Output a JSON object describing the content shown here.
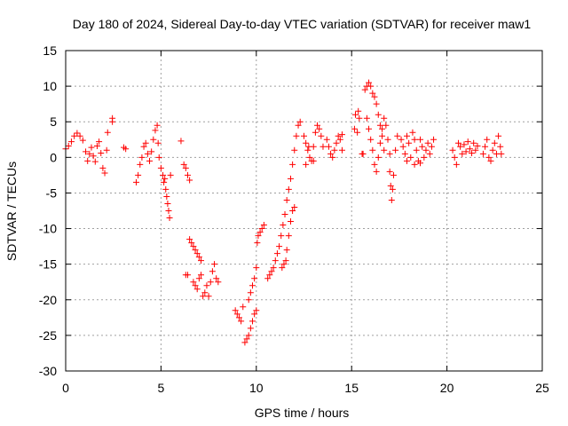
{
  "chart_data": {
    "type": "scatter",
    "title": "Day 180 of 2024, Sidereal Day-to-day VTEC variation (SDTVAR) for receiver maw1",
    "xlabel": "GPS time / hours",
    "ylabel": "SDTVAR / TECUs",
    "xlim": [
      0,
      25
    ],
    "ylim": [
      -30,
      15
    ],
    "xticks": [
      0,
      5,
      10,
      15,
      20,
      25
    ],
    "yticks": [
      -30,
      -25,
      -20,
      -15,
      -10,
      -5,
      0,
      5,
      10,
      15
    ],
    "grid": true,
    "legend": "none",
    "marker": "plus",
    "series": [
      {
        "name": "SDTVAR",
        "color": "#ff0000",
        "points": [
          [
            0.0,
            1.2
          ],
          [
            0.15,
            1.6
          ],
          [
            0.3,
            2.2
          ],
          [
            0.45,
            3.0
          ],
          [
            0.6,
            3.4
          ],
          [
            0.75,
            3.0
          ],
          [
            0.9,
            2.4
          ],
          [
            1.05,
            0.8
          ],
          [
            1.15,
            -0.5
          ],
          [
            1.25,
            0.5
          ],
          [
            1.35,
            1.4
          ],
          [
            1.45,
            0.2
          ],
          [
            1.55,
            -0.6
          ],
          [
            1.65,
            1.6
          ],
          [
            1.75,
            2.2
          ],
          [
            1.85,
            0.6
          ],
          [
            1.95,
            -1.5
          ],
          [
            2.05,
            -2.2
          ],
          [
            2.15,
            1.0
          ],
          [
            2.2,
            3.5
          ],
          [
            2.45,
            5.5
          ],
          [
            2.45,
            5.0
          ],
          [
            3.05,
            1.4
          ],
          [
            3.15,
            1.2
          ],
          [
            3.7,
            -3.5
          ],
          [
            3.8,
            -2.5
          ],
          [
            3.9,
            -1.0
          ],
          [
            4.0,
            0.0
          ],
          [
            4.1,
            1.5
          ],
          [
            4.2,
            2.0
          ],
          [
            4.3,
            0.5
          ],
          [
            4.4,
            -0.5
          ],
          [
            4.5,
            0.8
          ],
          [
            4.6,
            2.5
          ],
          [
            4.7,
            3.8
          ],
          [
            4.8,
            4.5
          ],
          [
            4.85,
            2.0
          ],
          [
            4.9,
            0.0
          ],
          [
            5.0,
            -1.5
          ],
          [
            5.1,
            -2.5
          ],
          [
            5.15,
            -3.5
          ],
          [
            5.2,
            -3.0
          ],
          [
            5.25,
            -4.5
          ],
          [
            5.3,
            -5.5
          ],
          [
            5.35,
            -6.5
          ],
          [
            5.4,
            -7.5
          ],
          [
            5.45,
            -8.5
          ],
          [
            5.5,
            -2.5
          ],
          [
            6.05,
            2.3
          ],
          [
            6.2,
            -1.0
          ],
          [
            6.3,
            -1.5
          ],
          [
            6.4,
            -2.5
          ],
          [
            6.5,
            -3.2
          ],
          [
            6.3,
            -16.5
          ],
          [
            6.4,
            -16.5
          ],
          [
            6.5,
            -11.5
          ],
          [
            6.6,
            -12.0
          ],
          [
            6.7,
            -12.5
          ],
          [
            6.8,
            -13.0
          ],
          [
            6.9,
            -13.5
          ],
          [
            7.0,
            -14.0
          ],
          [
            7.1,
            -14.5
          ],
          [
            6.7,
            -17.5
          ],
          [
            6.8,
            -18.0
          ],
          [
            6.9,
            -18.5
          ],
          [
            7.0,
            -17.0
          ],
          [
            7.1,
            -16.5
          ],
          [
            7.2,
            -19.5
          ],
          [
            7.3,
            -19.0
          ],
          [
            7.4,
            -18.0
          ],
          [
            7.5,
            -19.5
          ],
          [
            7.6,
            -17.5
          ],
          [
            7.7,
            -16.0
          ],
          [
            7.8,
            -15.0
          ],
          [
            7.9,
            -17.0
          ],
          [
            8.0,
            -17.5
          ],
          [
            8.9,
            -21.5
          ],
          [
            9.0,
            -22.0
          ],
          [
            9.1,
            -22.5
          ],
          [
            9.2,
            -23.0
          ],
          [
            9.3,
            -21.0
          ],
          [
            9.4,
            -26.0
          ],
          [
            9.5,
            -25.5
          ],
          [
            9.6,
            -25.0
          ],
          [
            9.7,
            -24.0
          ],
          [
            9.8,
            -23.0
          ],
          [
            9.9,
            -22.0
          ],
          [
            10.0,
            -21.5
          ],
          [
            9.6,
            -20.0
          ],
          [
            9.7,
            -19.0
          ],
          [
            9.8,
            -18.0
          ],
          [
            9.9,
            -17.0
          ],
          [
            10.0,
            -15.5
          ],
          [
            10.05,
            -12.0
          ],
          [
            10.1,
            -11.0
          ],
          [
            10.2,
            -10.5
          ],
          [
            10.3,
            -10.0
          ],
          [
            10.4,
            -9.5
          ],
          [
            10.6,
            -17.0
          ],
          [
            10.7,
            -16.5
          ],
          [
            10.8,
            -16.0
          ],
          [
            10.9,
            -15.5
          ],
          [
            11.0,
            -14.5
          ],
          [
            11.1,
            -13.5
          ],
          [
            11.2,
            -12.5
          ],
          [
            11.3,
            -11.0
          ],
          [
            11.4,
            -9.5
          ],
          [
            11.5,
            -8.0
          ],
          [
            11.6,
            -6.0
          ],
          [
            11.7,
            -4.5
          ],
          [
            11.8,
            -3.0
          ],
          [
            11.9,
            -1.0
          ],
          [
            12.0,
            1.0
          ],
          [
            12.1,
            3.0
          ],
          [
            12.2,
            4.5
          ],
          [
            12.3,
            5.0
          ],
          [
            11.35,
            -15.5
          ],
          [
            11.45,
            -15.0
          ],
          [
            11.55,
            -14.5
          ],
          [
            11.6,
            -13.0
          ],
          [
            11.7,
            -11.0
          ],
          [
            11.8,
            -9.0
          ],
          [
            11.9,
            -7.5
          ],
          [
            12.0,
            -7.0
          ],
          [
            12.5,
            3.0
          ],
          [
            12.6,
            2.0
          ],
          [
            12.7,
            1.0
          ],
          [
            12.8,
            0.0
          ],
          [
            12.9,
            -0.5
          ],
          [
            13.0,
            1.5
          ],
          [
            13.1,
            3.5
          ],
          [
            13.2,
            4.5
          ],
          [
            13.3,
            4.0
          ],
          [
            13.4,
            3.0
          ],
          [
            13.5,
            1.5
          ],
          [
            12.6,
            -1.0
          ],
          [
            12.75,
            1.5
          ],
          [
            13.0,
            -0.5
          ],
          [
            13.7,
            2.5
          ],
          [
            13.8,
            1.5
          ],
          [
            13.9,
            0.5
          ],
          [
            14.0,
            0.0
          ],
          [
            14.1,
            1.0
          ],
          [
            14.2,
            2.0
          ],
          [
            14.3,
            3.0
          ],
          [
            14.4,
            2.5
          ],
          [
            14.5,
            1.0
          ],
          [
            14.5,
            3.2
          ],
          [
            15.15,
            4.0
          ],
          [
            15.3,
            3.5
          ],
          [
            15.2,
            6.0
          ],
          [
            15.35,
            6.5
          ],
          [
            15.4,
            5.5
          ],
          [
            15.55,
            0.5
          ],
          [
            15.6,
            0.5
          ],
          [
            15.7,
            9.5
          ],
          [
            15.8,
            10.0
          ],
          [
            15.9,
            10.5
          ],
          [
            16.0,
            10.0
          ],
          [
            16.1,
            9.0
          ],
          [
            16.2,
            8.5
          ],
          [
            16.3,
            7.5
          ],
          [
            16.4,
            6.0
          ],
          [
            16.5,
            4.5
          ],
          [
            16.6,
            3.0
          ],
          [
            16.7,
            1.0
          ],
          [
            15.8,
            5.5
          ],
          [
            15.9,
            4.0
          ],
          [
            16.0,
            2.5
          ],
          [
            16.1,
            1.0
          ],
          [
            16.2,
            -1.0
          ],
          [
            16.3,
            -2.0
          ],
          [
            16.4,
            0.0
          ],
          [
            16.5,
            2.0
          ],
          [
            16.6,
            4.0
          ],
          [
            16.7,
            5.5
          ],
          [
            16.8,
            4.5
          ],
          [
            16.9,
            2.5
          ],
          [
            17.0,
            0.5
          ],
          [
            17.0,
            -2.0
          ],
          [
            17.05,
            -4.0
          ],
          [
            17.1,
            -6.0
          ],
          [
            17.15,
            -4.5
          ],
          [
            17.2,
            -2.5
          ],
          [
            17.3,
            1.0
          ],
          [
            17.4,
            3.0
          ],
          [
            17.6,
            2.5
          ],
          [
            17.7,
            1.5
          ],
          [
            17.8,
            0.5
          ],
          [
            17.9,
            3.0
          ],
          [
            18.0,
            2.0
          ],
          [
            18.1,
            0.0
          ],
          [
            18.2,
            3.5
          ],
          [
            18.3,
            2.5
          ],
          [
            18.4,
            1.0
          ],
          [
            18.5,
            -0.5
          ],
          [
            18.6,
            2.5
          ],
          [
            18.7,
            1.5
          ],
          [
            18.8,
            0.0
          ],
          [
            18.9,
            1.0
          ],
          [
            19.0,
            2.0
          ],
          [
            19.1,
            0.5
          ],
          [
            19.2,
            1.5
          ],
          [
            19.3,
            2.5
          ],
          [
            17.9,
            -0.5
          ],
          [
            18.3,
            -1.0
          ],
          [
            18.6,
            -0.8
          ],
          [
            20.3,
            1.0
          ],
          [
            20.4,
            0.0
          ],
          [
            20.5,
            -1.0
          ],
          [
            20.6,
            2.0
          ],
          [
            20.7,
            1.5
          ],
          [
            20.8,
            0.5
          ],
          [
            20.9,
            1.8
          ],
          [
            21.0,
            0.8
          ],
          [
            21.1,
            2.2
          ],
          [
            21.2,
            1.2
          ],
          [
            21.3,
            0.6
          ],
          [
            21.4,
            2.0
          ],
          [
            21.5,
            1.0
          ],
          [
            21.6,
            1.6
          ],
          [
            21.9,
            0.5
          ],
          [
            22.0,
            1.5
          ],
          [
            22.1,
            2.5
          ],
          [
            22.2,
            0.0
          ],
          [
            22.3,
            -0.5
          ],
          [
            22.4,
            1.0
          ],
          [
            22.5,
            2.0
          ],
          [
            22.6,
            0.5
          ],
          [
            22.7,
            3.0
          ],
          [
            22.8,
            1.5
          ],
          [
            22.85,
            0.5
          ]
        ]
      }
    ]
  }
}
